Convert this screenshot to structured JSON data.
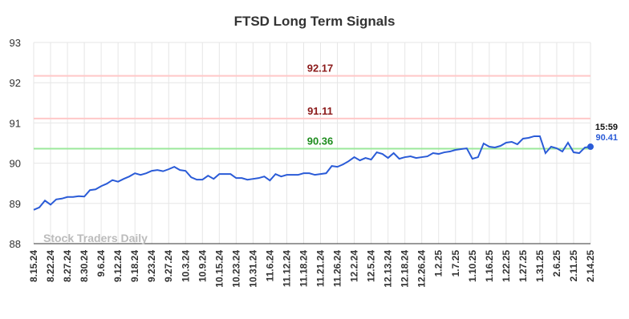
{
  "chart_data": {
    "type": "line",
    "title": "FTSD Long Term Signals",
    "watermark": "Stock Traders Daily",
    "categories": [
      "8.15.24",
      null,
      null,
      "8.22.24",
      null,
      null,
      "8.27.24",
      null,
      null,
      "8.30.24",
      null,
      null,
      "9.6.24",
      null,
      null,
      "9.12.24",
      null,
      null,
      "9.18.24",
      null,
      null,
      "9.23.24",
      null,
      null,
      "9.27.24",
      null,
      null,
      "10.3.24",
      null,
      null,
      "10.9.24",
      null,
      null,
      "10.15.24",
      null,
      null,
      "10.23.24",
      null,
      null,
      "10.31.24",
      null,
      null,
      "11.6.24",
      null,
      null,
      "11.12.24",
      null,
      null,
      "11.18.24",
      null,
      null,
      "11.21.24",
      null,
      null,
      "11.26.24",
      null,
      null,
      "12.2.24",
      null,
      null,
      "12.5.24",
      null,
      null,
      "12.13.24",
      null,
      null,
      "12.18.24",
      null,
      null,
      "12.26.24",
      null,
      null,
      "1.2.25",
      null,
      null,
      "1.7.25",
      null,
      null,
      "1.10.25",
      null,
      null,
      "1.16.25",
      null,
      null,
      "1.22.25",
      null,
      null,
      "1.27.25",
      null,
      null,
      "1.31.25",
      null,
      null,
      "2.6.25",
      null,
      null,
      "2.11.25",
      null,
      null,
      "2.14.25"
    ],
    "values": [
      88.84,
      88.9,
      89.07,
      88.97,
      89.1,
      89.12,
      89.16,
      89.16,
      89.18,
      89.17,
      89.33,
      89.35,
      89.43,
      89.49,
      89.58,
      89.54,
      89.61,
      89.67,
      89.75,
      89.71,
      89.75,
      89.81,
      89.83,
      89.8,
      89.85,
      89.91,
      89.83,
      89.81,
      89.65,
      89.59,
      89.59,
      89.69,
      89.61,
      89.73,
      89.73,
      89.73,
      89.63,
      89.63,
      89.59,
      89.61,
      89.63,
      89.67,
      89.57,
      89.73,
      89.67,
      89.71,
      89.71,
      89.71,
      89.75,
      89.75,
      89.71,
      89.73,
      89.75,
      89.93,
      89.91,
      89.97,
      90.05,
      90.15,
      90.07,
      90.13,
      90.09,
      90.27,
      90.23,
      90.13,
      90.25,
      90.11,
      90.15,
      90.17,
      90.13,
      90.15,
      90.17,
      90.25,
      90.23,
      90.27,
      90.29,
      90.33,
      90.35,
      90.37,
      90.11,
      90.15,
      90.49,
      90.41,
      90.39,
      90.43,
      90.51,
      90.53,
      90.47,
      90.61,
      90.63,
      90.67,
      90.67,
      90.25,
      90.41,
      90.37,
      90.29,
      90.51,
      90.27,
      90.25,
      90.39,
      90.41
    ],
    "color": "#2a5bd7",
    "last_time": "15:59",
    "reference_lines": [
      {
        "value": 92.17,
        "color": "#ffc8c8",
        "label_color": "#8b1a1a"
      },
      {
        "value": 91.11,
        "color": "#ffc8c8",
        "label_color": "#8b1a1a"
      },
      {
        "value": 90.36,
        "color": "#9be89b",
        "label_color": "#1e8c1e"
      }
    ],
    "ylim": [
      88,
      93
    ],
    "yticks": [
      88,
      89,
      90,
      91,
      92,
      93
    ],
    "grid": true
  }
}
